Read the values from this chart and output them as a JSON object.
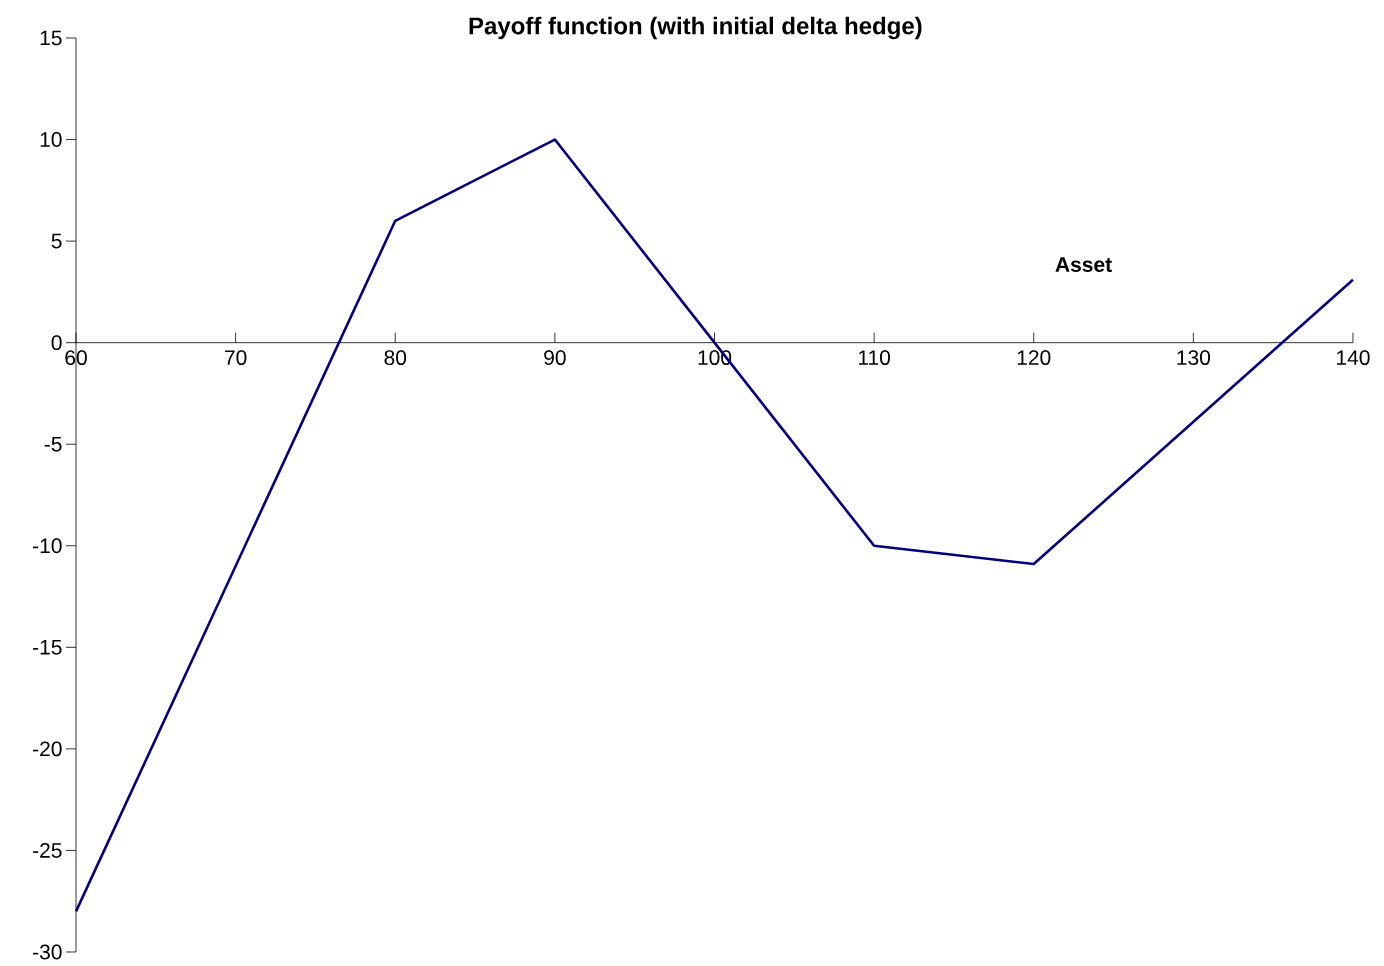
{
  "chart_data": {
    "type": "line",
    "title": "Payoff function (with initial delta hedge)",
    "xlabel": "Asset",
    "x": [
      60,
      80,
      90,
      100,
      110,
      120,
      140
    ],
    "series": [
      {
        "color": "#000080",
        "values": [
          -28,
          6,
          10,
          0,
          -10,
          -10.9,
          3.1
        ]
      }
    ],
    "xlim": [
      60,
      140
    ],
    "ylim": [
      -30,
      15
    ],
    "xticks": [
      60,
      70,
      80,
      90,
      100,
      110,
      120,
      130,
      140
    ],
    "yticks": [
      -30,
      -25,
      -20,
      -15,
      -10,
      -5,
      0,
      5,
      10,
      15
    ],
    "grid": false,
    "marker": "none",
    "line_style": "solid"
  }
}
